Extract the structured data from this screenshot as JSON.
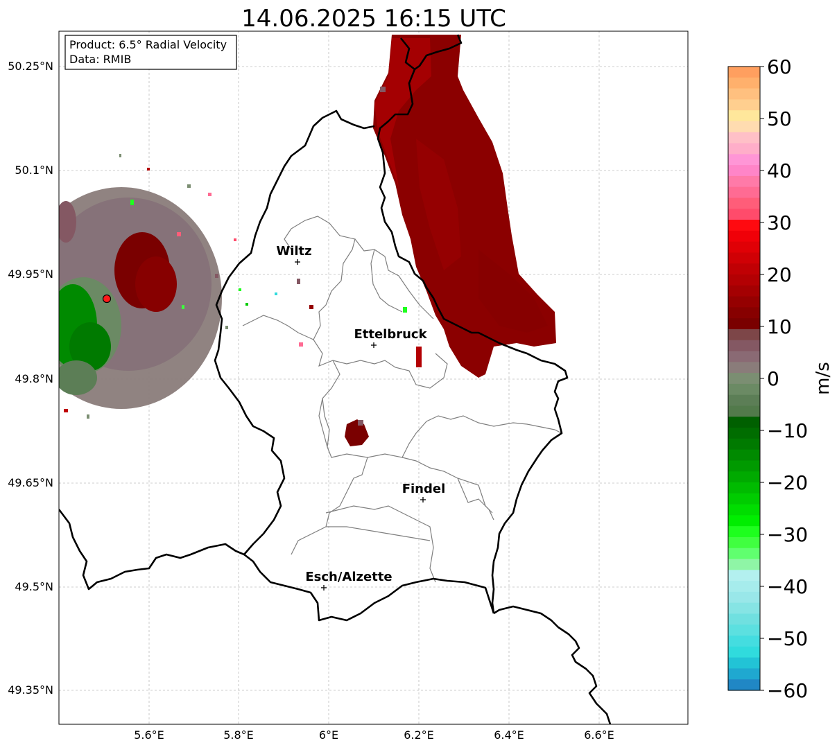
{
  "title": "14.06.2025 16:15 UTC",
  "info_box": {
    "product_line": "Product: 6.5° Radial Velocity",
    "data_line": "Data: RMIB"
  },
  "map": {
    "x_ticks": [
      "5.6°E",
      "5.8°E",
      "6°E",
      "6.2°E",
      "6.4°E",
      "6.6°E"
    ],
    "y_ticks": [
      "50.25°N",
      "50.1°N",
      "49.95°N",
      "49.8°N",
      "49.65°N",
      "49.5°N",
      "49.35°N"
    ],
    "cities": [
      {
        "name": "Wiltz"
      },
      {
        "name": "Ettelbruck"
      },
      {
        "name": "Findel"
      },
      {
        "name": "Esch/Alzette"
      }
    ]
  },
  "colorbar": {
    "label": "m/s",
    "min": -60,
    "max": 60,
    "tick_labels": [
      "60",
      "50",
      "40",
      "30",
      "20",
      "10",
      "0",
      "−10",
      "−20",
      "−30",
      "−40",
      "−50",
      "−60"
    ],
    "colors_top_to_bottom": [
      "#ff9f5f",
      "#ffb06c",
      "#ffc07f",
      "#ffcf8f",
      "#ffe79b",
      "#ffdcb0",
      "#ffc0c7",
      "#ffaec9",
      "#ff96d6",
      "#ff85c8",
      "#ff7aa8",
      "#ff6b93",
      "#ff5d79",
      "#ff4b6b",
      "#ff0a10",
      "#f00008",
      "#e00006",
      "#d00005",
      "#c00004",
      "#b30003",
      "#a40002",
      "#950001",
      "#870000",
      "#7a0000",
      "#7d4648",
      "#845863",
      "#8a6a74",
      "#8a7c7a",
      "#7b8e72",
      "#6b8a64",
      "#5c7e56",
      "#527a4b",
      "#006000",
      "#006d00",
      "#007a00",
      "#008a00",
      "#009a00",
      "#00aa00",
      "#00bb00",
      "#00cc00",
      "#00dd00",
      "#00ee00",
      "#1eff1e",
      "#40ff40",
      "#60ff6f",
      "#8ff5a6",
      "#b3f0ef",
      "#a6ecec",
      "#99e7e9",
      "#86e4e4",
      "#70e0e0",
      "#5ce0e0",
      "#44dde0",
      "#30dbdd",
      "#22c3d6",
      "#1fa8d0",
      "#2087c5"
    ]
  }
}
